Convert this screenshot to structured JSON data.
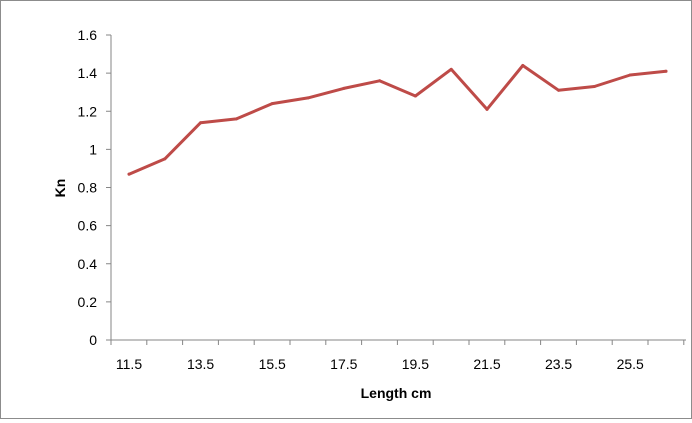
{
  "chart_data": {
    "type": "line",
    "title": "",
    "xlabel": "Length cm",
    "ylabel": "Kn",
    "x_tick_labels": [
      "11.5",
      "13.5",
      "15.5",
      "17.5",
      "19.5",
      "21.5",
      "23.5",
      "25.5"
    ],
    "y_tick_labels": [
      "0",
      "0.2",
      "0.4",
      "0.6",
      "0.8",
      "1",
      "1.2",
      "1.4",
      "1.6"
    ],
    "ylim": [
      0,
      1.6
    ],
    "grid": false,
    "legend": "none",
    "series": [
      {
        "color": "#be4b48",
        "x": [
          11.5,
          12.5,
          13.5,
          14.5,
          15.5,
          16.5,
          17.5,
          18.5,
          19.5,
          20.5,
          21.5,
          22.5,
          23.5,
          24.5,
          25.5,
          26.5
        ],
        "values": [
          0.87,
          0.95,
          1.14,
          1.16,
          1.24,
          1.27,
          1.32,
          1.36,
          1.28,
          1.42,
          1.21,
          1.44,
          1.31,
          1.33,
          1.39,
          1.41
        ]
      }
    ]
  }
}
